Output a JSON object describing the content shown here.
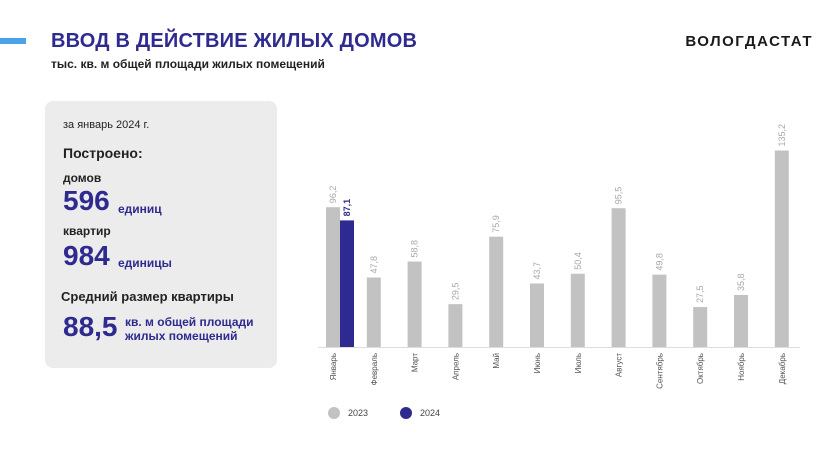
{
  "header": {
    "title": "ВВОД В ДЕЙСТВИЕ ЖИЛЫХ ДОМОВ",
    "subtitle": "тыс. кв. м общей площади жилых помещений",
    "brand": "ВОЛОГДАСТАТ"
  },
  "summary": {
    "period": "за январь 2024 г.",
    "built_label": "Построено:",
    "houses_label": "домов",
    "houses_value": "596",
    "houses_unit": "единиц",
    "flats_label": "квартир",
    "flats_value": "984",
    "flats_unit": "единицы",
    "avg_label": "Средний размер квартиры",
    "avg_value": "88,5",
    "avg_unit": "кв. м общей площади жилых помещений"
  },
  "colors": {
    "series_2023": "#c2c2c2",
    "series_2024": "#2e2a8f",
    "label_2023": "#a8a8a8",
    "label_2024": "#2e2a8f"
  },
  "chart_data": {
    "type": "bar",
    "title": "",
    "xlabel": "",
    "ylabel": "",
    "ylim": [
      0,
      150
    ],
    "categories": [
      "Январь",
      "Февраль",
      "Март",
      "Апрель",
      "Май",
      "Июнь",
      "Июль",
      "Август",
      "Сентябрь",
      "Октябрь",
      "Ноябрь",
      "Декабрь"
    ],
    "series": [
      {
        "name": "2023",
        "values": [
          96.2,
          47.8,
          58.8,
          29.5,
          75.9,
          43.7,
          50.4,
          95.5,
          49.8,
          27.5,
          35.8,
          135.2
        ],
        "labels": [
          "96,2",
          "47,8",
          "58,8",
          "29,5",
          "75,9",
          "43,7",
          "50,4",
          "95,5",
          "49,8",
          "27,5",
          "35,8",
          "135,2"
        ]
      },
      {
        "name": "2024",
        "values": [
          87.1,
          null,
          null,
          null,
          null,
          null,
          null,
          null,
          null,
          null,
          null,
          null
        ],
        "labels": [
          "87,1",
          "",
          "",
          "",
          "",
          "",
          "",
          "",
          "",
          "",
          "",
          ""
        ]
      }
    ],
    "legend": [
      "2023",
      "2024"
    ]
  }
}
